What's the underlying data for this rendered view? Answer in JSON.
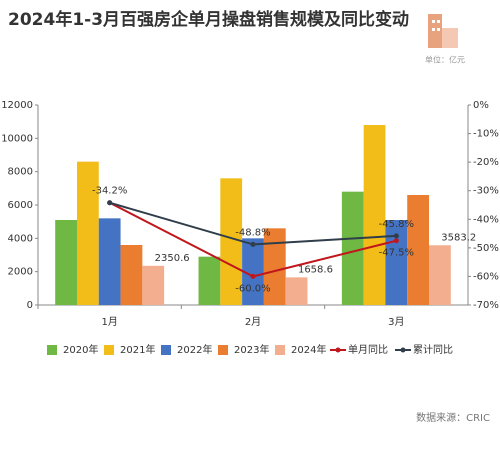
{
  "chart_data": {
    "type": "bar",
    "title": "2024年1-3月百强房企单月操盘销售规模及同比变动",
    "unit": "单位：亿元",
    "source": "数据来源：CRIC",
    "categories": [
      "1月",
      "2月",
      "3月"
    ],
    "series": [
      {
        "name": "2020年",
        "color": "#70b844",
        "values": [
          5100,
          2900,
          6800
        ]
      },
      {
        "name": "2021年",
        "color": "#f2bd19",
        "values": [
          8600,
          7600,
          10800
        ]
      },
      {
        "name": "2022年",
        "color": "#4573c4",
        "values": [
          5200,
          4000,
          5100
        ]
      },
      {
        "name": "2023年",
        "color": "#ea7d2f",
        "values": [
          3600,
          4600,
          6600
        ]
      },
      {
        "name": "2024年",
        "color": "#f2ae8e",
        "values": [
          2350.6,
          1658.6,
          3583.2
        ]
      },
      {
        "name": "单月同比",
        "type": "line",
        "axis": "y2",
        "color": "#c0161c",
        "values": [
          -34.2,
          -60.0,
          -47.5
        ],
        "value_labels": [
          "-34.2%",
          "-60.0%",
          "-47.5%"
        ]
      },
      {
        "name": "累计同比",
        "type": "line",
        "axis": "y2",
        "color": "#2f3e4a",
        "values": [
          -34.2,
          -48.8,
          -45.8
        ],
        "value_labels": [
          null,
          "-48.8%",
          "-45.8%"
        ]
      }
    ],
    "ylim": [
      0,
      12000
    ],
    "yticks": [
      0,
      2000,
      4000,
      6000,
      8000,
      10000,
      12000
    ],
    "y2lim": [
      -70,
      0
    ],
    "y2ticks": [
      {
        "value": 0,
        "label": "0%"
      },
      {
        "value": -10,
        "label": "-10%"
      },
      {
        "value": -20,
        "label": "-20%"
      },
      {
        "value": -30,
        "label": "-30%"
      },
      {
        "value": -40,
        "label": "-40%"
      },
      {
        "value": -50,
        "label": "-50%"
      },
      {
        "value": -60,
        "label": "-60%"
      },
      {
        "value": -70,
        "label": "-70%"
      }
    ],
    "legend": "bottom"
  }
}
